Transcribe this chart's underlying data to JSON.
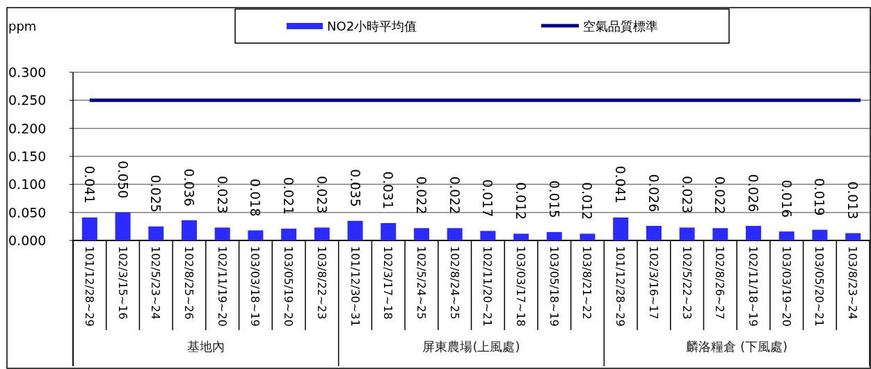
{
  "chart_data": {
    "type": "bar",
    "ylabel": "ppm",
    "categories": [
      "101/12/28~29",
      "102/3/15~16",
      "102/5/23~24",
      "102/8/25~26",
      "102/11/19~20",
      "103/03/18~19",
      "103/05/19~20",
      "103/8/22~23",
      "101/12/30~31",
      "102/3/17~18",
      "102/5/24~25",
      "102/8/24~25",
      "102/11/20~21",
      "103/03/17~18",
      "103/05/18~19",
      "103/8/21~22",
      "101/12/28~29",
      "102/3/16~17",
      "102/5/22~23",
      "102/8/26~27",
      "102/11/18~19",
      "103/03/19~20",
      "103/05/20~21",
      "103/8/23~24"
    ],
    "series": [
      {
        "name": "NO2小時平均值",
        "color": "#2b2bff",
        "values": [
          0.041,
          0.05,
          0.025,
          0.036,
          0.023,
          0.018,
          0.021,
          0.023,
          0.035,
          0.031,
          0.022,
          0.022,
          0.017,
          0.012,
          0.015,
          0.012,
          0.041,
          0.026,
          0.023,
          0.022,
          0.026,
          0.016,
          0.019,
          0.013
        ],
        "value_labels": [
          "0.041",
          "0.050",
          "0.025",
          "0.036",
          "0.023",
          "0.018",
          "0.021",
          "0.023",
          "0.035",
          "0.031",
          "0.022",
          "0.022",
          "0.017",
          "0.012",
          "0.015",
          "0.012",
          "0.041",
          "0.026",
          "0.023",
          "0.022",
          "0.026",
          "0.016",
          "0.019",
          "0.013"
        ]
      }
    ],
    "ref_lines": [
      {
        "axis": "y",
        "value": 0.25,
        "label": "空氣品質標準",
        "color": "#000080"
      }
    ],
    "annotations": [
      "基地內",
      "屏東農場(上風處)",
      "麟洛糧倉 (下風處)"
    ],
    "ylim": [
      0,
      0.3
    ],
    "yticks": [
      {
        "value": 0,
        "label": "0.000"
      },
      {
        "value": 0.05,
        "label": "0.050"
      },
      {
        "value": 0.1,
        "label": "0.100"
      },
      {
        "value": 0.15,
        "label": "0.150"
      },
      {
        "value": 0.2,
        "label": "0.200"
      },
      {
        "value": 0.25,
        "label": "0.250"
      },
      {
        "value": 0.3,
        "label": "0.300"
      }
    ],
    "grid": "y",
    "legend": "top"
  }
}
